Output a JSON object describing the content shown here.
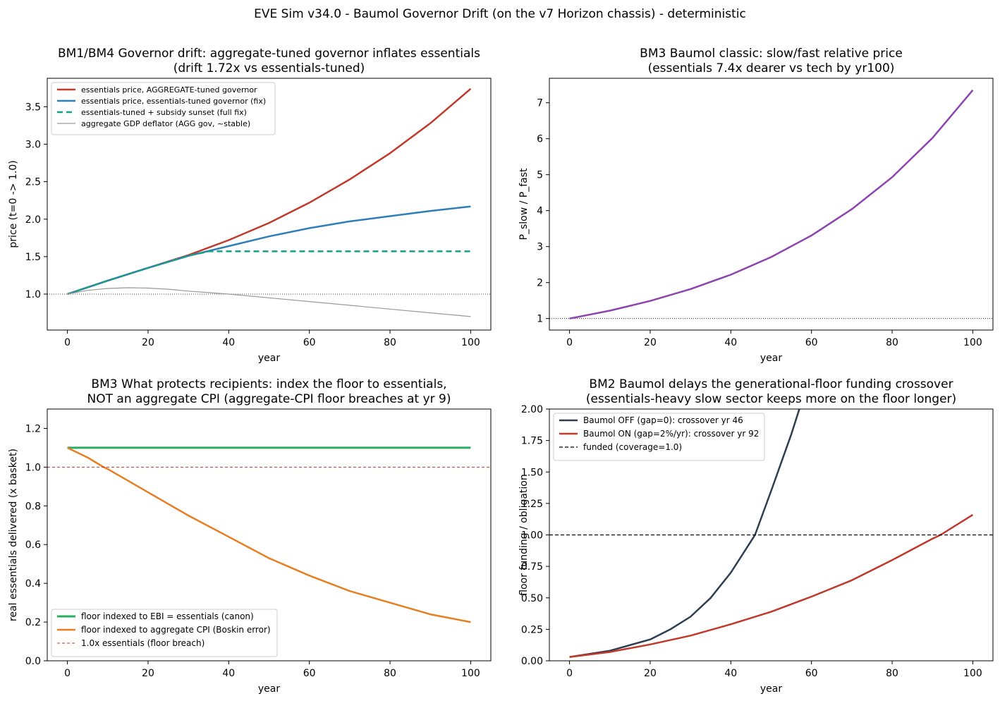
{
  "figure": {
    "suptitle": "EVE Sim v34.0 - Baumol Governor Drift (on the v7 Horizon chassis) - deterministic"
  },
  "chart_data": [
    {
      "id": "gov",
      "type": "line",
      "title": [
        "BM1/BM4  Governor drift: aggregate-tuned governor inflates essentials",
        "(drift 1.72x vs essentials-tuned)"
      ],
      "xlabel": "year",
      "ylabel": "price (t=0 -> 1.0)",
      "xlim": [
        -5,
        105
      ],
      "ylim": [
        0.52,
        3.88
      ],
      "xticks": [
        0,
        20,
        40,
        60,
        80,
        100
      ],
      "yticks": [
        1.0,
        1.5,
        2.0,
        2.5,
        3.0,
        3.5
      ],
      "ytick_labels": [
        "1.0",
        "1.5",
        "2.0",
        "2.5",
        "3.0",
        "3.5"
      ],
      "legend_position": "upper left",
      "reference_line": {
        "y": 1.0,
        "style": "dotted",
        "color": "#000000"
      },
      "series": [
        {
          "name": "essentials price, AGGREGATE-tuned governor",
          "color": "#c0392b",
          "width": 2.5,
          "dash": "",
          "x": [
            0,
            10,
            20,
            30,
            40,
            50,
            60,
            70,
            80,
            90,
            100
          ],
          "y": [
            1.0,
            1.18,
            1.35,
            1.52,
            1.72,
            1.95,
            2.22,
            2.53,
            2.88,
            3.28,
            3.74
          ]
        },
        {
          "name": "essentials price, essentials-tuned governor (fix)",
          "color": "#2e7fb8",
          "width": 2.5,
          "dash": "",
          "x": [
            0,
            10,
            20,
            30,
            40,
            50,
            60,
            70,
            80,
            90,
            100
          ],
          "y": [
            1.0,
            1.18,
            1.35,
            1.51,
            1.64,
            1.77,
            1.88,
            1.97,
            2.04,
            2.11,
            2.17
          ]
        },
        {
          "name": "essentials-tuned + subsidy sunset (full fix)",
          "color": "#16a085",
          "width": 2.5,
          "dash": "8,5",
          "x": [
            0,
            10,
            20,
            30,
            35,
            40,
            60,
            80,
            100
          ],
          "y": [
            1.0,
            1.18,
            1.35,
            1.51,
            1.57,
            1.57,
            1.57,
            1.57,
            1.57
          ]
        },
        {
          "name": "aggregate GDP deflator (AGG gov, ~stable)",
          "color": "#999999",
          "width": 1.2,
          "dash": "",
          "x": [
            0,
            5,
            10,
            15,
            20,
            25,
            30,
            35,
            40,
            50,
            60,
            70,
            80,
            90,
            100
          ],
          "y": [
            1.0,
            1.05,
            1.075,
            1.085,
            1.08,
            1.065,
            1.04,
            1.02,
            1.0,
            0.95,
            0.9,
            0.85,
            0.8,
            0.75,
            0.7
          ]
        }
      ]
    },
    {
      "id": "rel",
      "type": "line",
      "title": [
        "BM3  Baumol classic: slow/fast relative price",
        "(essentials 7.4x dearer vs tech by yr100)"
      ],
      "xlabel": "year",
      "ylabel": "P_slow / P_fast",
      "xlim": [
        -5,
        105
      ],
      "ylim": [
        0.68,
        7.68
      ],
      "xticks": [
        0,
        20,
        40,
        60,
        80,
        100
      ],
      "yticks": [
        1,
        2,
        3,
        4,
        5,
        6,
        7
      ],
      "ytick_labels": [
        "1",
        "2",
        "3",
        "4",
        "5",
        "6",
        "7"
      ],
      "legend_position": "none",
      "reference_line": {
        "y": 1.0,
        "style": "dotted",
        "color": "#000000"
      },
      "series": [
        {
          "name": "",
          "color": "#8e44ad",
          "width": 2.5,
          "dash": "",
          "x": [
            0,
            10,
            20,
            30,
            40,
            50,
            60,
            70,
            80,
            90,
            100
          ],
          "y": [
            1.0,
            1.22,
            1.49,
            1.82,
            2.22,
            2.71,
            3.31,
            4.04,
            4.93,
            6.02,
            7.35
          ]
        }
      ]
    },
    {
      "id": "floor",
      "type": "line",
      "title": [
        "BM3  What protects recipients: index the floor to essentials,",
        "NOT an aggregate CPI (aggregate-CPI floor breaches at yr 9)"
      ],
      "xlabel": "year",
      "ylabel": "real essentials delivered (x basket)",
      "xlim": [
        -5,
        105
      ],
      "ylim": [
        0.0,
        1.3
      ],
      "xticks": [
        0,
        20,
        40,
        60,
        80,
        100
      ],
      "yticks": [
        0.0,
        0.2,
        0.4,
        0.6,
        0.8,
        1.0,
        1.2
      ],
      "ytick_labels": [
        "0.0",
        "0.2",
        "0.4",
        "0.6",
        "0.8",
        "1.0",
        "1.2"
      ],
      "legend_position": "lower left",
      "reference_line": null,
      "series": [
        {
          "name": "floor indexed to EBI = essentials (canon)",
          "color": "#27ae60",
          "width": 3,
          "dash": "",
          "x": [
            0,
            100
          ],
          "y": [
            1.1,
            1.1
          ]
        },
        {
          "name": "floor indexed to aggregate CPI (Boskin error)",
          "color": "#e67e22",
          "width": 2.5,
          "dash": "",
          "x": [
            0,
            5,
            9,
            10,
            20,
            30,
            40,
            50,
            60,
            70,
            80,
            90,
            100
          ],
          "y": [
            1.1,
            1.05,
            1.0,
            0.99,
            0.87,
            0.75,
            0.64,
            0.53,
            0.44,
            0.36,
            0.3,
            0.24,
            0.2
          ]
        },
        {
          "name": "1.0x essentials (floor breach)",
          "color": "#c0392b",
          "width": 1,
          "dash": "4,3",
          "hline": 1.0,
          "x": [],
          "y": []
        }
      ]
    },
    {
      "id": "fund",
      "type": "line",
      "title": [
        "BM2  Baumol delays the generational-floor funding crossover",
        "(essentials-heavy slow sector keeps more on the floor longer)"
      ],
      "xlabel": "year",
      "ylabel": "floor funding / obligation",
      "xlim": [
        -5,
        105
      ],
      "ylim": [
        0.0,
        2.0
      ],
      "xticks": [
        0,
        20,
        40,
        60,
        80,
        100
      ],
      "yticks": [
        0.0,
        0.25,
        0.5,
        0.75,
        1.0,
        1.25,
        1.5,
        1.75,
        2.0
      ],
      "ytick_labels": [
        "0.00",
        "0.25",
        "0.50",
        "0.75",
        "1.00",
        "1.25",
        "1.50",
        "1.75",
        "2.00"
      ],
      "legend_position": "upper left",
      "reference_line": null,
      "series": [
        {
          "name": "Baumol OFF (gap=0): crossover yr 46",
          "color": "#2c3e50",
          "width": 2.5,
          "dash": "",
          "x": [
            0,
            10,
            20,
            25,
            30,
            35,
            40,
            45,
            46,
            50,
            55,
            58
          ],
          "y": [
            0.03,
            0.08,
            0.17,
            0.25,
            0.35,
            0.5,
            0.7,
            0.95,
            1.0,
            1.35,
            1.8,
            2.1
          ]
        },
        {
          "name": "Baumol ON (gap=2%/yr): crossover yr 92",
          "color": "#c0392b",
          "width": 2.5,
          "dash": "",
          "x": [
            0,
            10,
            20,
            30,
            40,
            50,
            60,
            70,
            80,
            90,
            92,
            100
          ],
          "y": [
            0.03,
            0.07,
            0.13,
            0.2,
            0.29,
            0.39,
            0.51,
            0.64,
            0.8,
            0.97,
            1.0,
            1.16
          ]
        },
        {
          "name": "funded (coverage=1.0)",
          "color": "#000000",
          "width": 1.2,
          "dash": "5,3",
          "hline": 1.0,
          "x": [],
          "y": []
        }
      ]
    }
  ]
}
